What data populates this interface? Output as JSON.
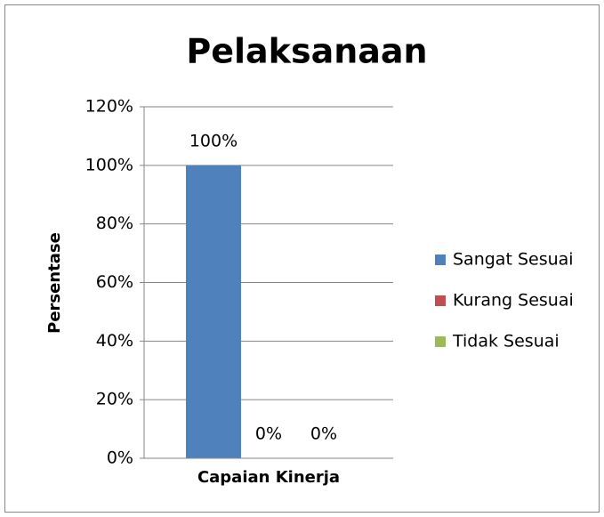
{
  "chart_data": {
    "type": "bar",
    "title": "Pelaksanaan",
    "y_label": "Persentase",
    "categories": [
      "Capaian Kinerja"
    ],
    "series": [
      {
        "name": "Sangat Sesuai",
        "color": "#4f81bd",
        "values": [
          100
        ],
        "value_labels": [
          "100%"
        ]
      },
      {
        "name": "Kurang Sesuai",
        "color": "#c0504d",
        "values": [
          0
        ],
        "value_labels": [
          "0%"
        ]
      },
      {
        "name": "Tidak Sesuai",
        "color": "#9bbb59",
        "values": [
          0
        ],
        "value_labels": [
          "0%"
        ]
      }
    ],
    "ylim": [
      0,
      120
    ],
    "yticks": [
      {
        "value": 0,
        "label": "0%"
      },
      {
        "value": 20,
        "label": "20%"
      },
      {
        "value": 40,
        "label": "40%"
      },
      {
        "value": 60,
        "label": "60%"
      },
      {
        "value": 80,
        "label": "80%"
      },
      {
        "value": 100,
        "label": "100%"
      },
      {
        "value": 120,
        "label": "120%"
      }
    ],
    "grid": true,
    "legend": "right"
  }
}
